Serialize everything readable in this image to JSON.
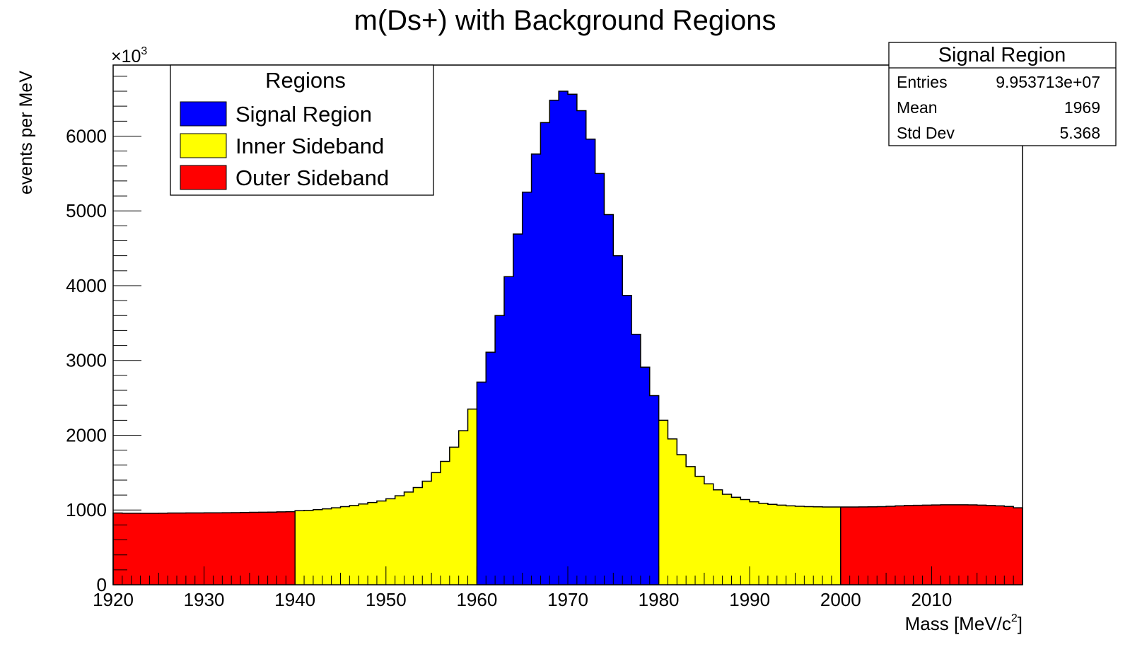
{
  "chart_data": {
    "type": "bar",
    "title": "m(Ds+) with Background Regions",
    "xlabel": "Mass [MeV/c",
    "xlabel_sup": "2",
    "xlabel_end": "]",
    "ylabel": "events per MeV",
    "y_multiplier_prefix": "×10",
    "y_multiplier_exp": "3",
    "xlim": [
      1920,
      2020
    ],
    "ylim": [
      0,
      6950
    ],
    "bin_width": 1,
    "x_ticks": [
      1920,
      1930,
      1940,
      1950,
      1960,
      1970,
      1980,
      1990,
      2000,
      2010
    ],
    "y_ticks": [
      0,
      1000,
      2000,
      3000,
      4000,
      5000,
      6000
    ],
    "grid": false,
    "legend": {
      "title": "Regions",
      "position": "top-left",
      "entries": [
        {
          "label": "Signal Region",
          "color": "#0000ff"
        },
        {
          "label": "Inner Sideband",
          "color": "#ffff00"
        },
        {
          "label": "Outer Sideband",
          "color": "#ff0000"
        }
      ]
    },
    "stats_box": {
      "title": "Signal Region",
      "position": "top-right",
      "rows": [
        {
          "label": "Entries",
          "value": "9.953713e+07"
        },
        {
          "label": "Mean",
          "value": "1969"
        },
        {
          "label": "Std Dev",
          "value": "5.368"
        }
      ]
    },
    "series": [
      {
        "name": "Outer Sideband",
        "color": "#ff0000",
        "x_start": 1920,
        "values": [
          960,
          958,
          957,
          956,
          956,
          958,
          960,
          960,
          961,
          961,
          962,
          962,
          963,
          965,
          967,
          969,
          970,
          972,
          975,
          978
        ]
      },
      {
        "name": "Inner Sideband",
        "color": "#ffff00",
        "x_start": 1940,
        "values": [
          990,
          995,
          1005,
          1015,
          1030,
          1045,
          1060,
          1080,
          1100,
          1120,
          1150,
          1190,
          1240,
          1300,
          1385,
          1500,
          1650,
          1840,
          2060,
          2350
        ]
      },
      {
        "name": "Signal Region",
        "color": "#0000ff",
        "x_start": 1960,
        "values": [
          2710,
          3110,
          3600,
          4120,
          4690,
          5250,
          5760,
          6180,
          6480,
          6600,
          6560,
          6340,
          5960,
          5500,
          4950,
          4400,
          3870,
          3350,
          2910,
          2530
        ]
      },
      {
        "name": "Inner Sideband",
        "color": "#ffff00",
        "x_start": 1980,
        "values": [
          2200,
          1950,
          1740,
          1580,
          1450,
          1350,
          1270,
          1210,
          1170,
          1140,
          1110,
          1090,
          1075,
          1065,
          1055,
          1050,
          1045,
          1042,
          1040,
          1040
        ]
      },
      {
        "name": "Outer Sideband",
        "color": "#ff0000",
        "x_start": 2000,
        "values": [
          1040,
          1040,
          1041,
          1042,
          1045,
          1050,
          1055,
          1060,
          1063,
          1065,
          1067,
          1070,
          1070,
          1070,
          1068,
          1065,
          1060,
          1055,
          1047,
          1030
        ]
      }
    ]
  }
}
